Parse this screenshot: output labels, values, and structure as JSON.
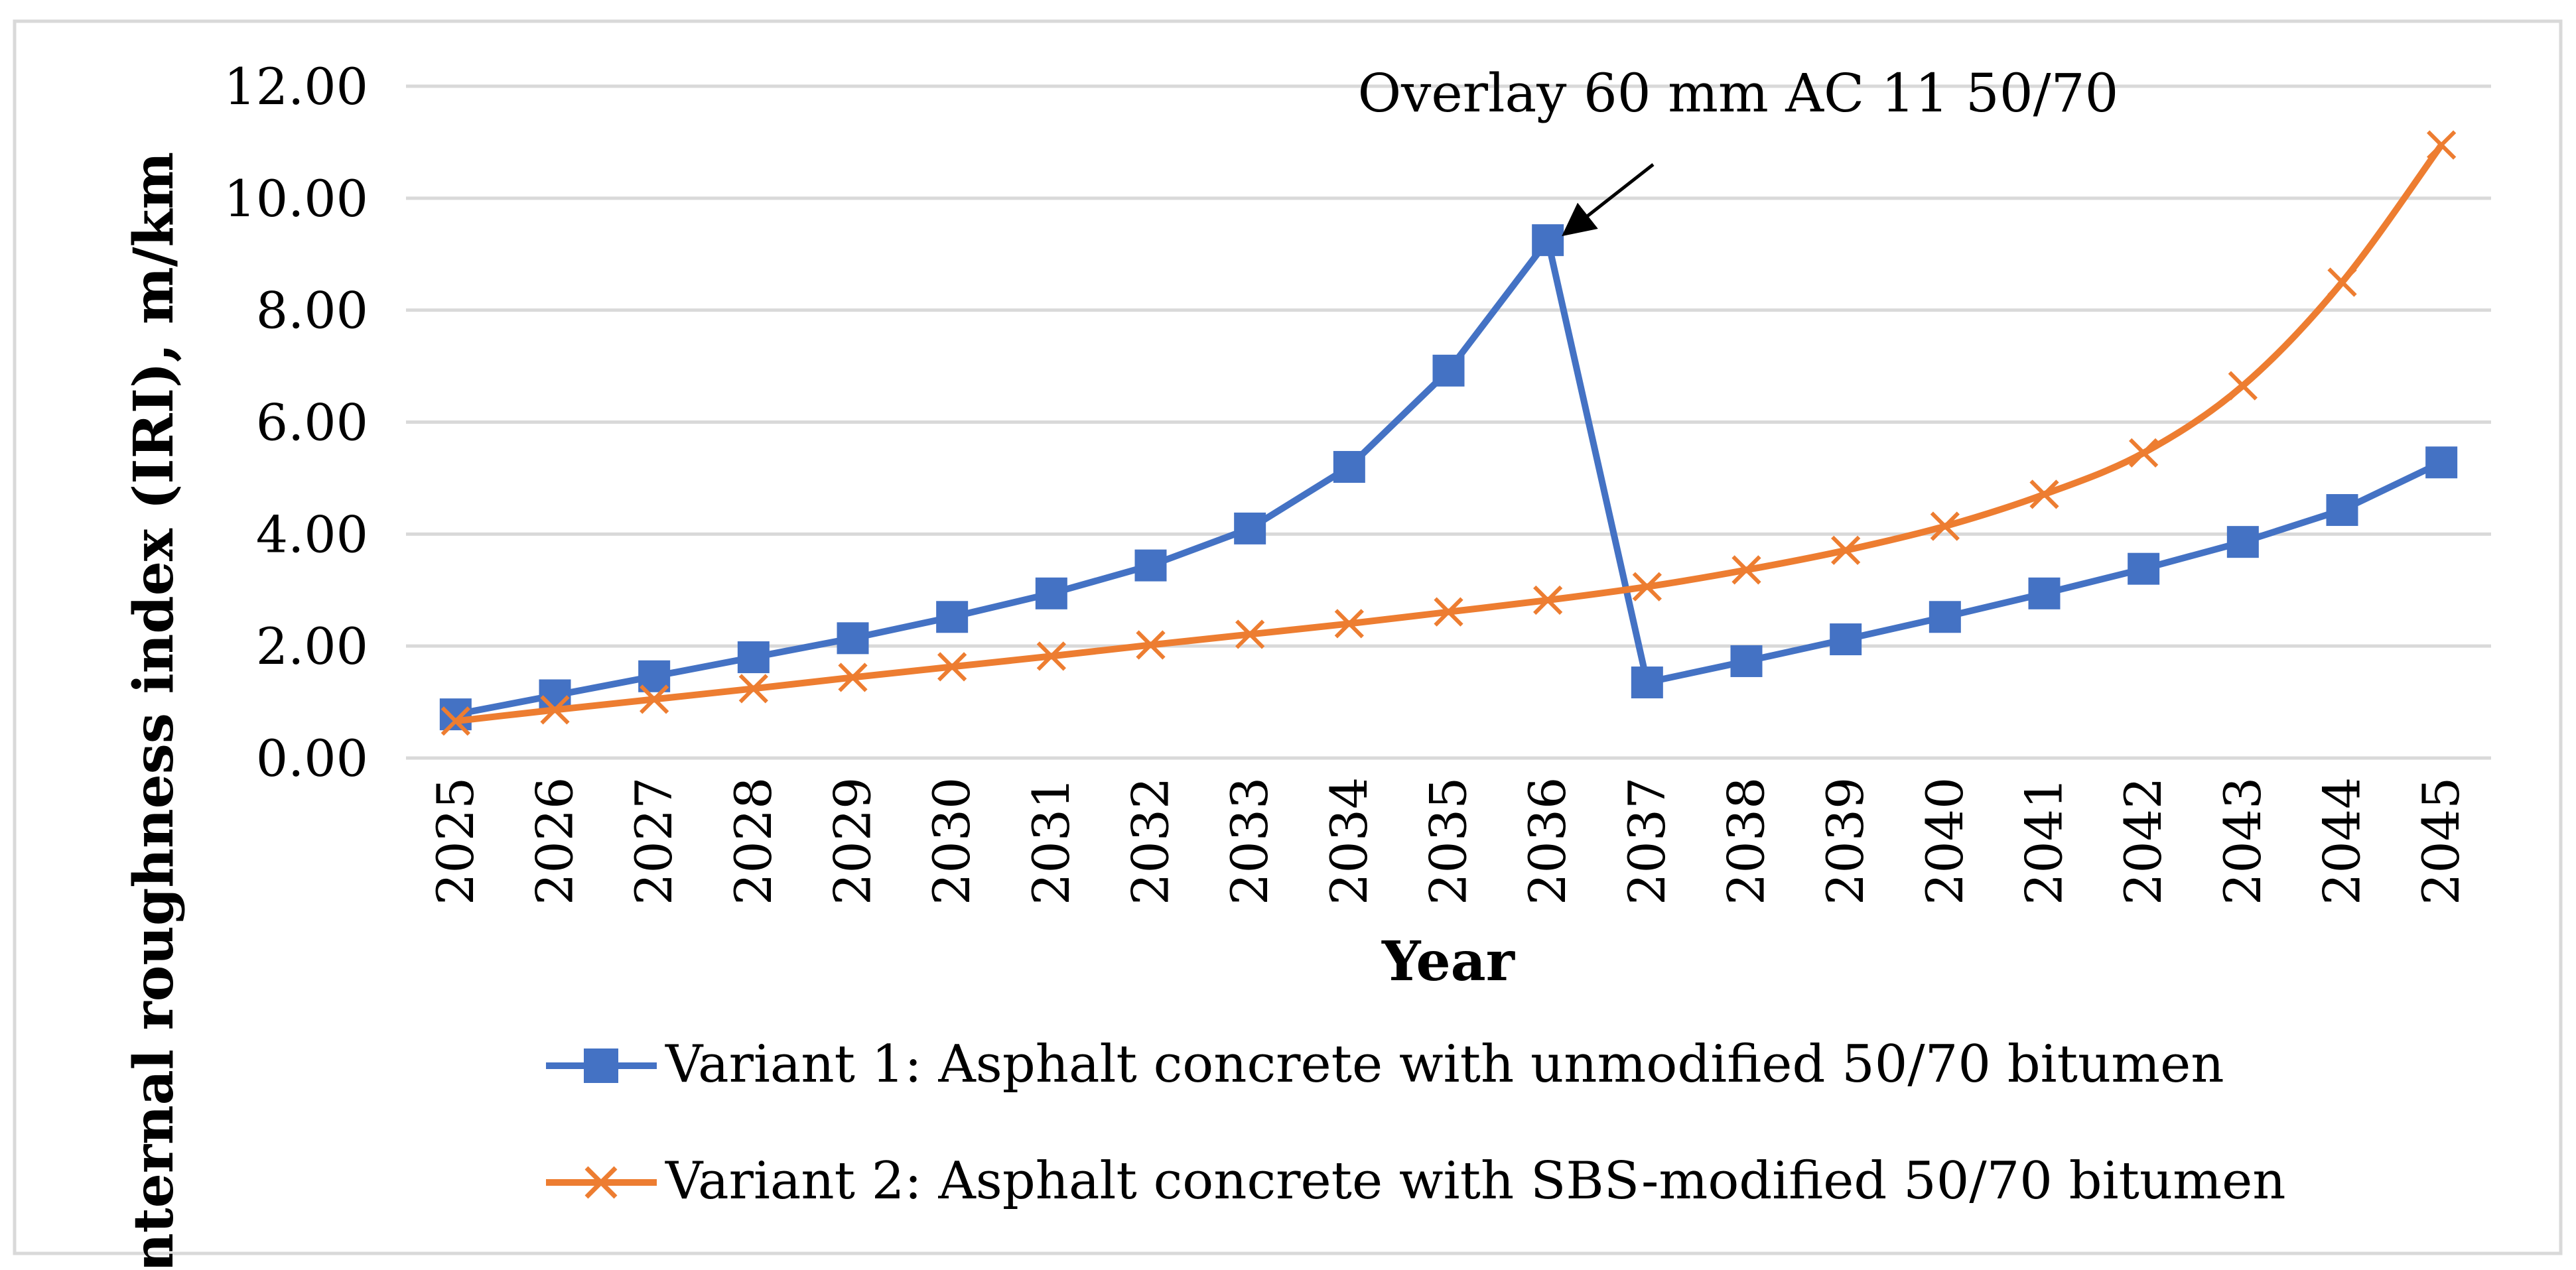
{
  "chart_data": {
    "type": "line",
    "title": "",
    "xlabel": "Year",
    "ylabel": "Internal roughness index (IRI), m/km",
    "ylim": [
      0,
      12
    ],
    "yticks": [
      "0.00",
      "2.00",
      "4.00",
      "6.00",
      "8.00",
      "10.00",
      "12.00"
    ],
    "categories": [
      "2025",
      "2026",
      "2027",
      "2028",
      "2029",
      "2030",
      "2031",
      "2032",
      "2033",
      "2034",
      "2035",
      "2036",
      "2037",
      "2038",
      "2039",
      "2040",
      "2041",
      "2042",
      "2043",
      "2044",
      "2045"
    ],
    "grid": true,
    "legend_position": "bottom",
    "series": [
      {
        "name": "Variant 1: Asphalt concrete with unmodified 50/70 bitumen",
        "color": "#4472C4",
        "marker": "square",
        "values": [
          0.78,
          1.12,
          1.46,
          1.8,
          2.14,
          2.52,
          2.94,
          3.44,
          4.1,
          5.2,
          6.92,
          9.25,
          1.35,
          1.73,
          2.12,
          2.52,
          2.94,
          3.38,
          3.86,
          4.43,
          5.28
        ]
      },
      {
        "name": "Variant 2: Asphalt concrete with SBS-modified 50/70 bitumen",
        "color": "#ED7D31",
        "marker": "x",
        "values": [
          0.66,
          0.86,
          1.05,
          1.24,
          1.44,
          1.63,
          1.82,
          2.02,
          2.21,
          2.4,
          2.61,
          2.82,
          3.06,
          3.36,
          3.71,
          4.14,
          4.71,
          5.45,
          6.65,
          8.5,
          10.95
        ]
      }
    ],
    "annotations": [
      {
        "text": "Overlay 60 mm AC 11 50/70",
        "target_category": "2036",
        "target_series": 0
      }
    ]
  }
}
